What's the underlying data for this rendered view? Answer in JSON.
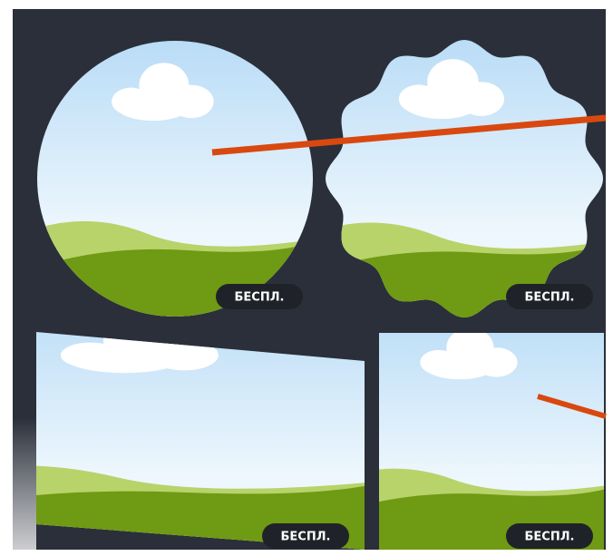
{
  "frames": [
    {
      "badge": "БЕСПЛ."
    },
    {
      "badge": "БЕСПЛ."
    },
    {
      "badge": "БЕСПЛ."
    },
    {
      "badge": "БЕСПЛ."
    }
  ]
}
